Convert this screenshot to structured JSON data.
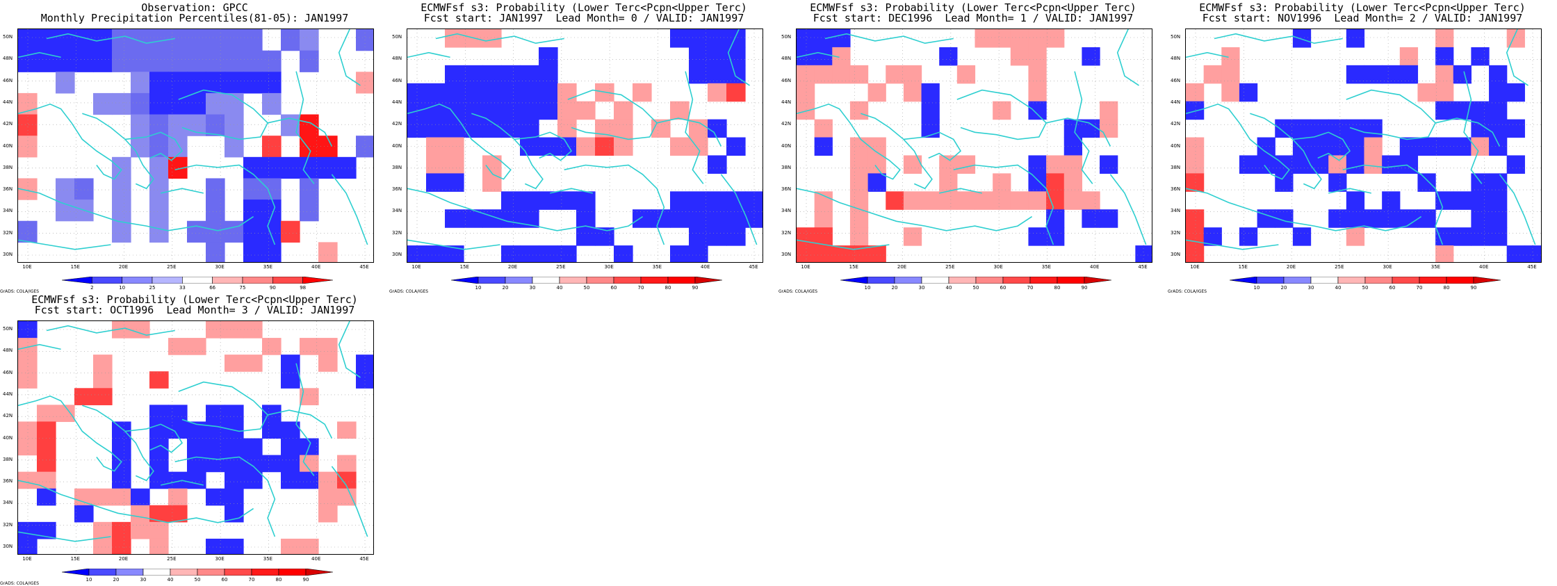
{
  "panels": [
    {
      "title_line1": "Observation: GPCC",
      "title_line2": "Monthly Precipitation Percentiles(81-05): JAN1997",
      "colorbar": "obs",
      "grid": [
        "DDDDDLLLLLLLL.LK..L",
        "DDDDDLLLLLLLLL.L...",
        "..K...KDDDDDDD....p",
        "p...KKLDDDKK.K.....",
        "q.....KLKKLK..Kr...",
        "p.....KLK..K.q.rr.L",
        ".....K.Kr...DDDDDD.",
        "p.KL.K.K..L.LL.L...",
        "..KK.K.K..L.DD.L...",
        "L....K.K.LLLDDq....",
        "..........L.DD..p.."
      ]
    },
    {
      "title_line1": "ECMWFsf s3: Probability (Lower Terc<Pcpn<Upper Terc)",
      "title_line2": "Fcst start: JAN1997  Lead Month= 0 / VALID: JAN1997",
      "colorbar": "prob",
      "grid": [
        "..ppp.........DDDD",
        ".......D.......DDD",
        "..DDDDDD.......DDD",
        "DDDDDDDDp.p.p...pq",
        "DDDDDDDDpp.p..p...",
        "DDDDDDD.p.pp.p.pD.",
        ".pp...DDDpqp..pp.D",
        ".pp.p...........D.",
        ".DD.p..............",
        ".....DDDDD....DDDDD",
        "..DDDDD..D..DDDDDDD",
        ".........DD....DDD.",
        "DDD..DDDD..D..DD..."
      ]
    },
    {
      "title_line1": "ECMWFsf s3: Probability (Lower Terc<Pcpn<Upper Terc)",
      "title_line2": "Fcst start: DEC1996  Lead Month= 1 / VALID: JAN1997",
      "colorbar": "prob",
      "grid": [
        "DDD.......ppppp...",
        "DDp.....D...pp..D.",
        "pppp.pp..p...p....",
        "p...p.pD.....p....",
        "p..p...D...p.D...p",
        ".p.....D.......DDp",
        ".D.pp..........D..",
        "...pp.p.pp...Dpp.D",
        "...pD...p..p.Dqp..",
        ".p.p.qppppppppqpp.",
        ".p.p..........D.DD",
        "qq.p..p......DD...",
        "qqqqq..............D"
      ]
    },
    {
      "title_line1": "ECMWFsf s3: Probability (Lower Terc<Pcpn<Upper Terc)",
      "title_line2": "Fcst start: NOV1996  Lead Month= 2 / VALID: JAN1997",
      "colorbar": "prob",
      "grid": [
        "......D..D....p...p",
        "..p.........p.D.D.",
        ".pp......DDDD.pD.D.",
        "p.pD.........pp..DD",
        "D.............DDDD.",
        ".....DDDDDD.....DDD",
        "p...D.DDDDp.DDDDpD.",
        "p..DDDDDpDpDD.....D",
        "q....D..D....D..DD.",
        ".........D.D..DDDD.",
        "q...DD..DDDDDD..DD.",
        "qD.D..D..p....DDDD.",
        "q.............p...DD"
      ]
    },
    {
      "title_line1": "ECMWFsf s3: Probability (Lower Terc<Pcpn<Upper Terc)",
      "title_line2": "Fcst start: OCT1996  Lead Month= 3 / VALID: JAN1997",
      "colorbar": "prob",
      "grid": [
        "D....pp...ppp......",
        "p.......pp...p.pp..",
        "p...p......pp.D.p.D",
        "p...p..q......D...D",
        "...qq..........p...",
        ".pp....DD.DD.D....",
        "pq...D.DDDDD.DD..p",
        "pq...D.D.DDDD.DD..",
        ".q...D.D.DDDDDDp.p",
        "pp...D.DDD.DD.DDpq",
        ".D.pppD.p.DD....pp",
        "...D..pqq..D....p.",
        "DD..pqpp.........",
        "D...pq.p..DD..pp."
      ]
    }
  ],
  "lat_labels": [
    "50N",
    "48N",
    "46N",
    "44N",
    "42N",
    "40N",
    "38N",
    "36N",
    "34N",
    "32N",
    "30N"
  ],
  "lon_labels": [
    "10E",
    "15E",
    "20E",
    "25E",
    "30E",
    "35E",
    "40E",
    "45E"
  ],
  "colorbar_obs": {
    "ticks": [
      "2",
      "10",
      "25",
      "33",
      "66",
      "75",
      "90",
      "98"
    ],
    "colors": [
      "#0000ff",
      "#4a4aff",
      "#8888ff",
      "#b6b6ff",
      "#ffffff",
      "#ffb6b6",
      "#ff8888",
      "#ff4a4a",
      "#ff0000"
    ]
  },
  "colorbar_prob": {
    "ticks": [
      "10",
      "20",
      "30",
      "40",
      "50",
      "60",
      "70",
      "80",
      "90"
    ],
    "colors": [
      "#0000ff",
      "#4a4aff",
      "#8888ff",
      "#ffffff",
      "#ffb6b6",
      "#ff8888",
      "#ff4a4a",
      "#ff1a1a",
      "#ff0000",
      "#d80000"
    ]
  },
  "cell_colors": {
    "D": "#2a2aff",
    "K": "#8a8af0",
    "L": "#6b6bf0",
    "p": "#ff9f9f",
    "q": "#ff4040",
    "r": "#ff1515"
  },
  "credit": "GrADS: COLA/IGES",
  "coast_color": "#2ecfd0"
}
